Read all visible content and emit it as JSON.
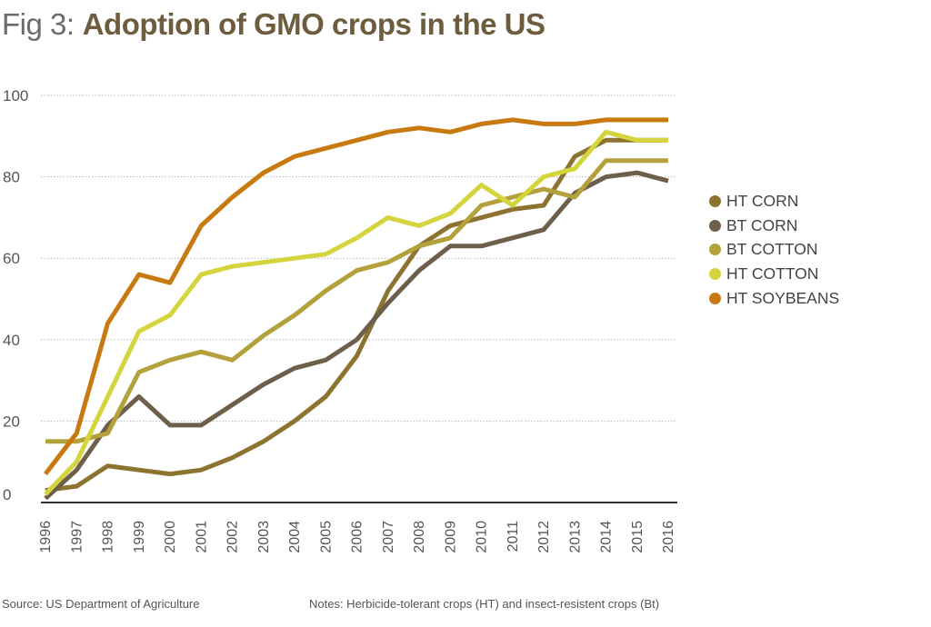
{
  "header": {
    "prefix": "Fig 3:",
    "title": "Adoption of GMO crops in the US"
  },
  "footer": {
    "source": "Source: US Department of Agriculture",
    "notes": "Notes: Herbicide-tolerant crops (HT) and insect-resistent crops (Bt)"
  },
  "chart_data": {
    "type": "line",
    "title": "Adoption of GMO crops in the US",
    "xlabel": "",
    "ylabel": "",
    "ylim": [
      0,
      100
    ],
    "yticks": [
      0,
      20,
      40,
      60,
      80,
      100
    ],
    "grid": "horizontal dotted",
    "legend_position": "right",
    "categories": [
      "1996",
      "1997",
      "1998",
      "1999",
      "2000",
      "2001",
      "2002",
      "2003",
      "2004",
      "2005",
      "2006",
      "2007",
      "2008",
      "2009",
      "2010",
      "2011",
      "2012",
      "2013",
      "2014",
      "2015",
      "2016"
    ],
    "series": [
      {
        "name": "HT CORN",
        "color": "#8c7430",
        "values": [
          3,
          4,
          9,
          8,
          7,
          8,
          11,
          15,
          20,
          26,
          36,
          52,
          63,
          68,
          70,
          72,
          73,
          85,
          89,
          89,
          89
        ]
      },
      {
        "name": "BT CORN",
        "color": "#6e5f4b",
        "values": [
          1,
          8,
          19,
          26,
          19,
          19,
          24,
          29,
          33,
          35,
          40,
          49,
          57,
          63,
          63,
          65,
          67,
          76,
          80,
          81,
          79
        ]
      },
      {
        "name": "BT COTTON",
        "color": "#b3a13c",
        "values": [
          15,
          15,
          17,
          32,
          35,
          37,
          35,
          41,
          46,
          52,
          57,
          59,
          63,
          65,
          73,
          75,
          77,
          75,
          84,
          84,
          84
        ]
      },
      {
        "name": "HT COTTON",
        "color": "#d4d43c",
        "values": [
          2,
          10,
          26,
          42,
          46,
          56,
          58,
          59,
          60,
          61,
          65,
          70,
          68,
          71,
          78,
          73,
          80,
          82,
          91,
          89,
          89
        ]
      },
      {
        "name": "HT SOYBEANS",
        "color": "#c8790f",
        "values": [
          7,
          17,
          44,
          56,
          54,
          68,
          75,
          81,
          85,
          87,
          89,
          91,
          92,
          91,
          93,
          94,
          93,
          93,
          94,
          94,
          94
        ]
      }
    ]
  }
}
